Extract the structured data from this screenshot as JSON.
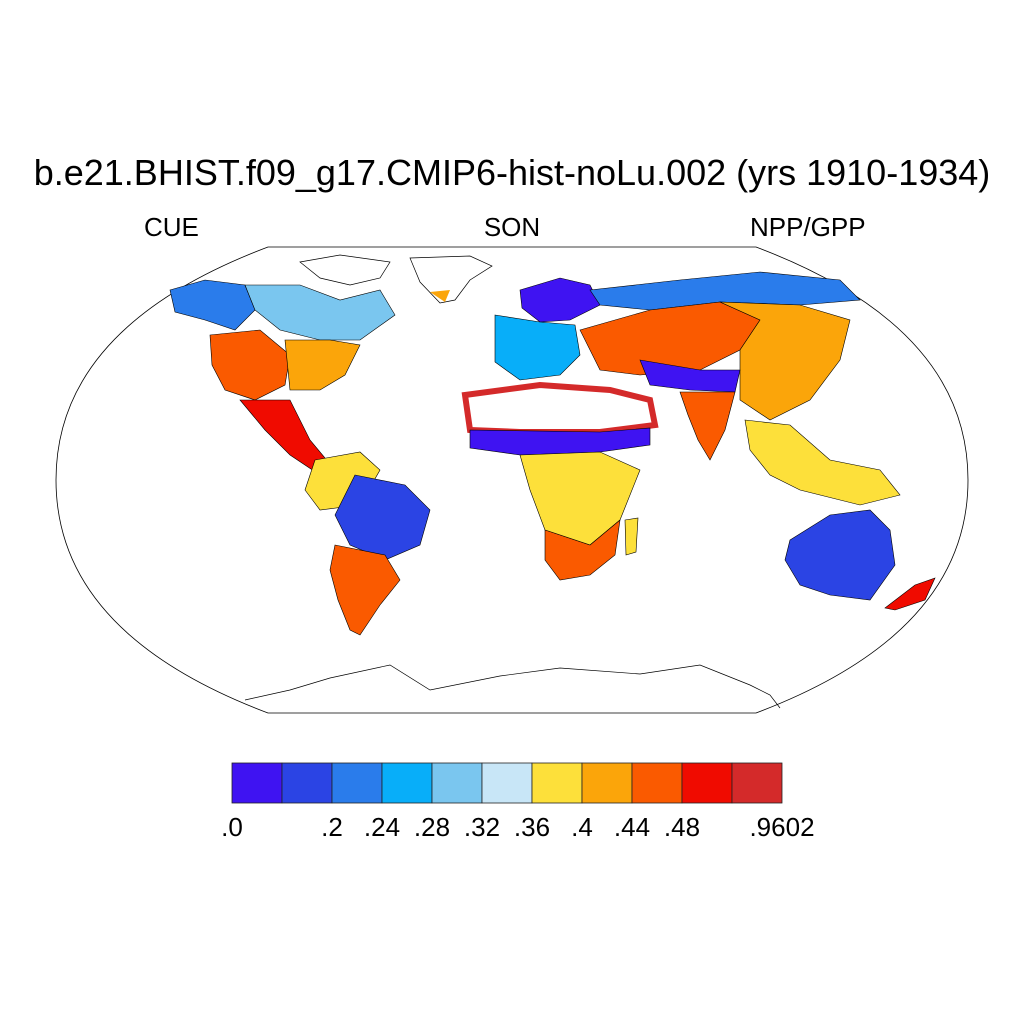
{
  "title": "b.e21.BHIST.f09_g17.CMIP6-hist-noLu.002 (yrs 1910-1934)",
  "subtitle_left": "CUE",
  "subtitle_center": "SON",
  "subtitle_right": "NPP/GPP",
  "colorbar": {
    "colors": [
      "#3f13f2",
      "#2b44e4",
      "#2a7ceb",
      "#08aef9",
      "#7ac6ef",
      "#c8e6f7",
      "#fde03a",
      "#fba50a",
      "#fa5a00",
      "#f00b00",
      "#d42a2a"
    ],
    "labels": [
      ".0",
      "",
      ".2",
      ".24",
      ".28",
      ".32",
      ".36",
      ".4",
      ".44",
      ".48",
      "",
      ".9602"
    ]
  },
  "map": {
    "projection": "Robinson",
    "land_regions": [
      {
        "name": "Alaska",
        "color": "#2a7ceb"
      },
      {
        "name": "Canada",
        "color": "#7ac6ef"
      },
      {
        "name": "Western United States",
        "color": "#fa5a00"
      },
      {
        "name": "Eastern United States",
        "color": "#fba50a"
      },
      {
        "name": "Mexico",
        "color": "#f00b00"
      },
      {
        "name": "Amazon",
        "color": "#2b44e4"
      },
      {
        "name": "Northern South America",
        "color": "#fde03a"
      },
      {
        "name": "Southern South America",
        "color": "#fa5a00"
      },
      {
        "name": "Scandinavia",
        "color": "#3f13f2"
      },
      {
        "name": "Europe",
        "color": "#08aef9"
      },
      {
        "name": "Siberia",
        "color": "#2a7ceb"
      },
      {
        "name": "Central Asia",
        "color": "#fa5a00"
      },
      {
        "name": "Himalaya",
        "color": "#3f13f2"
      },
      {
        "name": "China",
        "color": "#fba50a"
      },
      {
        "name": "Southeast Asia",
        "color": "#fde03a"
      },
      {
        "name": "Sahel",
        "color": "#3f13f2"
      },
      {
        "name": "Central Africa",
        "color": "#fde03a"
      },
      {
        "name": "Southern Africa",
        "color": "#fa5a00"
      },
      {
        "name": "Australia",
        "color": "#2b44e4"
      },
      {
        "name": "New Zealand",
        "color": "#f00b00"
      }
    ]
  }
}
